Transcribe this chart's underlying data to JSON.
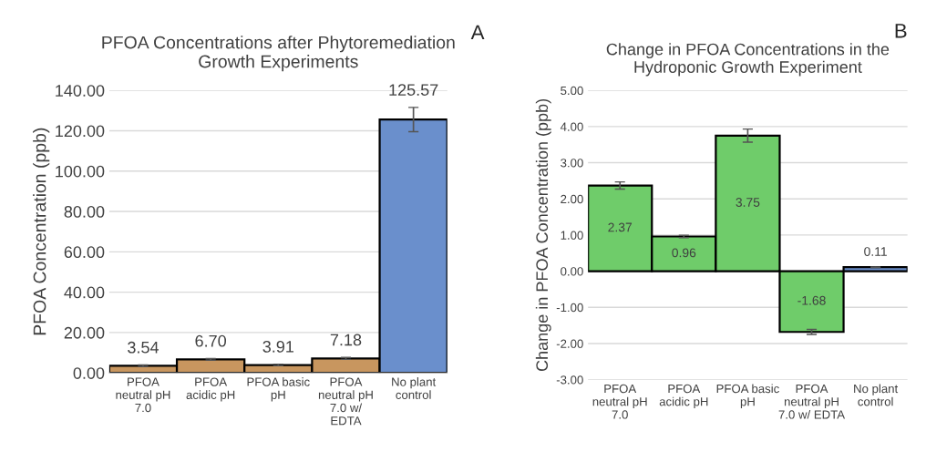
{
  "chart_data": [
    {
      "type": "bar",
      "title": "PFOA Concentrations after Phytoremediation\nGrowth Experiments",
      "ylabel": "PFOA Concentration (ppb)",
      "annotations": [
        "A"
      ],
      "categories": [
        "PFOA\nneutral pH\n7.0",
        "PFOA\nacidic pH",
        "PFOA basic\npH",
        "PFOA\nneutral pH\n7.0 w/\nEDTA",
        "No plant\ncontrol"
      ],
      "values": [
        3.54,
        6.7,
        3.91,
        7.18,
        125.57
      ],
      "colors": [
        "#c8965f",
        "#c8965f",
        "#c8965f",
        "#c8965f",
        "#6a8fcc"
      ],
      "errors": [
        0.4,
        0.4,
        0.4,
        0.5,
        6
      ],
      "value_labels": [
        "3.54",
        "6.70",
        "3.91",
        "7.18",
        "125.57"
      ],
      "ylim": [
        0,
        140
      ],
      "yticks": [
        {
          "value": 0,
          "label": "0.00"
        },
        {
          "value": 20,
          "label": "20.00"
        },
        {
          "value": 40,
          "label": "40.00"
        },
        {
          "value": 60,
          "label": "60.00"
        },
        {
          "value": 80,
          "label": "80.00"
        },
        {
          "value": 100,
          "label": "100.00"
        },
        {
          "value": 120,
          "label": "120.00"
        },
        {
          "value": 140,
          "label": "140.00"
        }
      ],
      "grid": "y"
    },
    {
      "type": "bar",
      "title": "Change in PFOA Concentrations in the\nHydroponic Growth Experiment",
      "ylabel": "Change in PFOA Concentration (ppb)",
      "annotations": [
        "B"
      ],
      "categories": [
        "PFOA\nneutral pH\n7.0",
        "PFOA\nacidic pH",
        "PFOA basic\npH",
        "PFOA\nneutral pH\n7.0 w/ EDTA",
        "No plant\ncontrol"
      ],
      "values": [
        2.37,
        0.96,
        3.75,
        -1.68,
        0.11
      ],
      "colors": [
        "#6fcc6a",
        "#6fcc6a",
        "#6fcc6a",
        "#6fcc6a",
        "#6a8fcc"
      ],
      "errors": [
        0.1,
        0.03,
        0.18,
        0.07,
        0.01
      ],
      "value_labels": [
        "2.37",
        "0.96",
        "3.75",
        "-1.68",
        "0.11"
      ],
      "ylim": [
        -3,
        5
      ],
      "yticks": [
        {
          "value": -3,
          "label": "-3.00"
        },
        {
          "value": -2,
          "label": "-2.00"
        },
        {
          "value": -1,
          "label": "-1.00"
        },
        {
          "value": 0,
          "label": "0.00"
        },
        {
          "value": 1,
          "label": "1.00"
        },
        {
          "value": 2,
          "label": "2.00"
        },
        {
          "value": 3,
          "label": "3.00"
        },
        {
          "value": 4,
          "label": "4.00"
        },
        {
          "value": 5,
          "label": "5.00"
        }
      ],
      "grid": "y"
    }
  ]
}
